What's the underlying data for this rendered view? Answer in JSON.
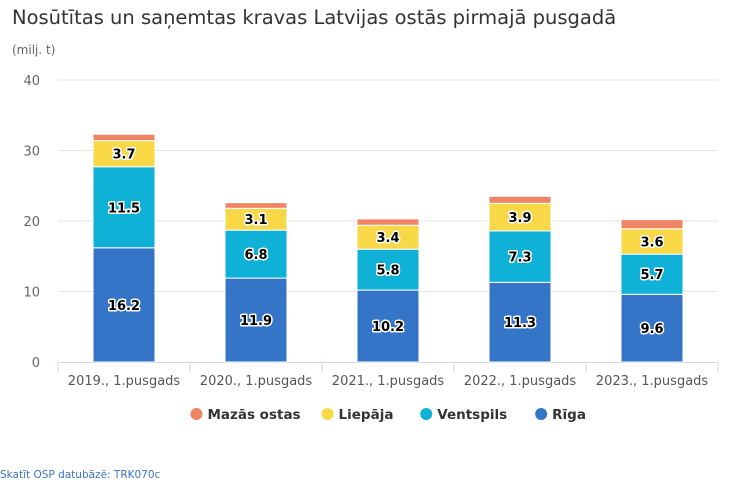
{
  "chart_data": {
    "type": "bar",
    "stacked": true,
    "title": "Nosūtītas un saņemtas kravas Latvijas ostās pirmajā pusgadā",
    "ylabel": "(milj. t)",
    "categories": [
      "2019., 1.pusgads",
      "2020., 1.pusgads",
      "2021., 1.pusgads",
      "2022., 1.pusgads",
      "2023., 1.pusgads"
    ],
    "ylim": [
      0,
      40
    ],
    "yticks": [
      0,
      10,
      20,
      30,
      40
    ],
    "grid": true,
    "legend_position": "bottom",
    "series": [
      {
        "name": "Rīga",
        "color": "#3575c8",
        "values": [
          16.2,
          11.9,
          10.2,
          11.3,
          9.6
        ],
        "labels": true
      },
      {
        "name": "Ventspils",
        "color": "#0fb1d6",
        "values": [
          11.5,
          6.8,
          5.8,
          7.3,
          5.7
        ],
        "labels": true
      },
      {
        "name": "Liepāja",
        "color": "#f8d846",
        "values": [
          3.7,
          3.1,
          3.4,
          3.9,
          3.6
        ],
        "labels": true
      },
      {
        "name": "Mazās ostas",
        "color": "#ee8463",
        "values": [
          0.9,
          0.8,
          0.9,
          1.0,
          1.3
        ],
        "labels": false
      }
    ],
    "legend_order": [
      "Mazās ostas",
      "Liepāja",
      "Ventspils",
      "Rīga"
    ]
  },
  "footer": {
    "source_link": "Skatīt OSP datubāzē: TRK070c"
  }
}
